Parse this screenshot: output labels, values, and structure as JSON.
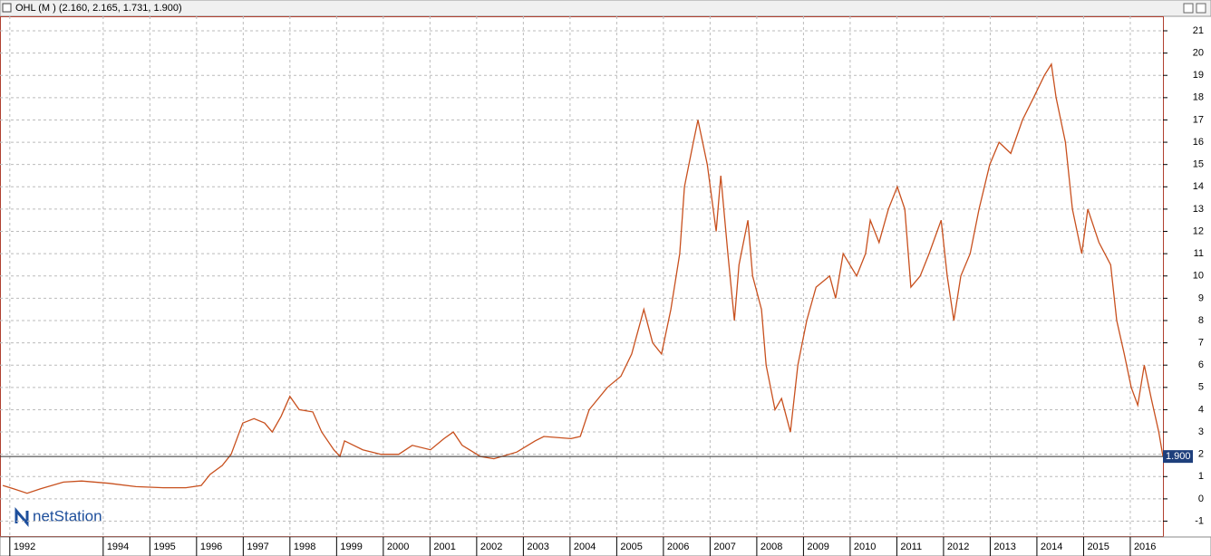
{
  "chart_data": {
    "type": "line",
    "title": "OHL (M ) (2.160, 2.165, 1.731, 1.900)",
    "logo": "netStation",
    "x": [
      1991.85,
      1992.08,
      1992.37,
      1992.66,
      1993.15,
      1993.54,
      1994.12,
      1994.7,
      1995.29,
      1995.77,
      1996.1,
      1996.29,
      1996.55,
      1996.74,
      1996.99,
      1997.23,
      1997.46,
      1997.62,
      1997.81,
      1998.0,
      1998.2,
      1998.49,
      1998.68,
      1998.94,
      1999.07,
      1999.17,
      1999.56,
      1999.95,
      2000.33,
      2000.62,
      2001.01,
      2001.3,
      2001.5,
      2001.69,
      2002.08,
      2002.37,
      2002.86,
      2003.25,
      2003.44,
      2004.02,
      2004.22,
      2004.41,
      2004.8,
      2005.09,
      2005.32,
      2005.58,
      2005.77,
      2005.96,
      2006.16,
      2006.35,
      2006.45,
      2006.64,
      2006.74,
      2006.94,
      2007.13,
      2007.23,
      2007.38,
      2007.52,
      2007.62,
      2007.81,
      2007.91,
      2008.1,
      2008.2,
      2008.39,
      2008.53,
      2008.72,
      2008.88,
      2009.07,
      2009.27,
      2009.56,
      2009.69,
      2009.85,
      2010.14,
      2010.33,
      2010.43,
      2010.62,
      2010.82,
      2011.01,
      2011.17,
      2011.3,
      2011.5,
      2011.69,
      2011.95,
      2012.08,
      2012.22,
      2012.37,
      2012.57,
      2012.76,
      2012.99,
      2013.19,
      2013.44,
      2013.69,
      2013.93,
      2014.16,
      2014.31,
      2014.41,
      2014.61,
      2014.76,
      2014.96,
      2015.09,
      2015.33,
      2015.58,
      2015.71,
      2015.87,
      2016.02,
      2016.16,
      2016.3,
      2016.45,
      2016.61,
      2016.7
    ],
    "series": [
      {
        "name": "OHL",
        "color": "#c8501e",
        "values": [
          0.6,
          0.45,
          0.25,
          0.45,
          0.75,
          0.8,
          0.7,
          0.55,
          0.5,
          0.5,
          0.6,
          1.1,
          1.5,
          2.0,
          3.4,
          3.6,
          3.4,
          3.0,
          3.7,
          4.6,
          4.0,
          3.9,
          3.0,
          2.2,
          1.9,
          2.6,
          2.2,
          2.0,
          2.0,
          2.4,
          2.2,
          2.7,
          3.0,
          2.4,
          1.9,
          1.8,
          2.1,
          2.6,
          2.8,
          2.7,
          2.8,
          4.0,
          5.0,
          5.5,
          6.5,
          8.5,
          7.0,
          6.5,
          8.5,
          11,
          14,
          16,
          17,
          15,
          12,
          14.5,
          11,
          8,
          10.5,
          12.5,
          10,
          8.5,
          6,
          4,
          4.5,
          3,
          6,
          8,
          9.5,
          10,
          9,
          11,
          10,
          11,
          12.5,
          11.5,
          13,
          14,
          13,
          9.5,
          10,
          11,
          12.5,
          10,
          8,
          10,
          11,
          13,
          15,
          16,
          15.5,
          17,
          18,
          19,
          19.5,
          18,
          16,
          13,
          11,
          13,
          11.5,
          10.5,
          8,
          6.5,
          5,
          4.2,
          6,
          4.5,
          3,
          1.9
        ]
      }
    ],
    "last_value": {
      "value": 1.9,
      "label": "1.900"
    },
    "xlim": [
      1991.79,
      2016.7
    ],
    "xticks": [
      1992,
      1994,
      1995,
      1996,
      1997,
      1998,
      1999,
      2000,
      2001,
      2002,
      2003,
      2004,
      2005,
      2006,
      2007,
      2008,
      2009,
      2010,
      2011,
      2012,
      2013,
      2014,
      2015,
      2016
    ],
    "ylim": [
      -1.67,
      21.65
    ],
    "yticks": [
      -1,
      0,
      1,
      2,
      3,
      4,
      5,
      6,
      7,
      8,
      9,
      10,
      11,
      12,
      13,
      14,
      15,
      16,
      17,
      18,
      19,
      20,
      21
    ],
    "grid": true
  }
}
